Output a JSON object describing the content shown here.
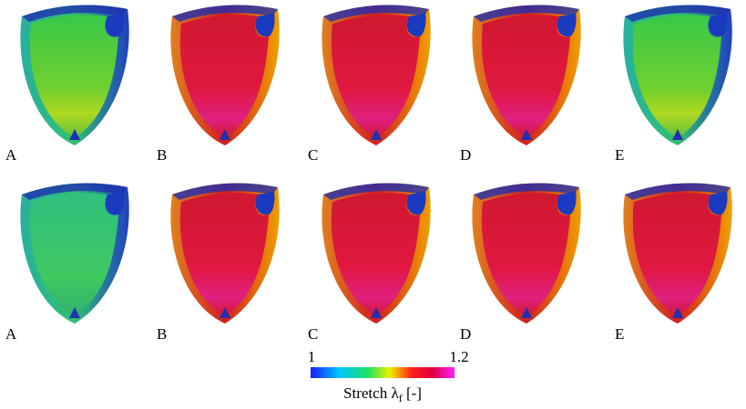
{
  "rows": [
    {
      "panels": [
        {
          "label": "A"
        },
        {
          "label": "B"
        },
        {
          "label": "C"
        },
        {
          "label": "D"
        },
        {
          "label": "E"
        }
      ]
    },
    {
      "panels": [
        {
          "label": "A"
        },
        {
          "label": "B"
        },
        {
          "label": "C"
        },
        {
          "label": "D"
        },
        {
          "label": "E"
        }
      ]
    }
  ],
  "colorbar": {
    "min_label": "1",
    "max_label": "1.2",
    "label": "Stretch λ",
    "label_subscript": "f",
    "label_unit": "[-]"
  }
}
